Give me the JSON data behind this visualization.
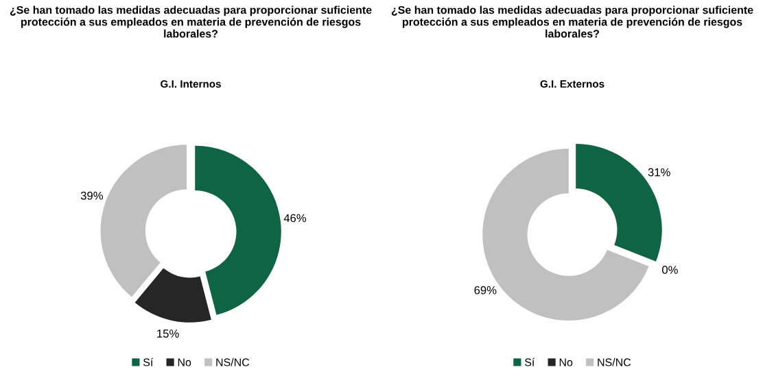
{
  "chart_data": [
    {
      "type": "donut",
      "title": "¿Se han tomado las medidas adecuadas para proporcionar suficiente protección a sus empleados en materia de prevención de riesgos laborales?",
      "subtitle": "G.I. Internos",
      "categories": [
        "Sí",
        "No",
        "NS/NC"
      ],
      "values": [
        46,
        15,
        39
      ],
      "value_labels": [
        "46%",
        "15%",
        "39%"
      ],
      "colors": [
        "#0f6443",
        "#262626",
        "#c0c0c0"
      ],
      "legend": "bottom"
    },
    {
      "type": "donut",
      "title": "¿Se han tomado las medidas adecuadas para proporcionar suficiente protección a sus empleados en materia de prevención de riesgos laborales?",
      "subtitle": "G.I. Externos",
      "categories": [
        "Sí",
        "No",
        "NS/NC"
      ],
      "values": [
        31,
        0,
        69
      ],
      "value_labels": [
        "31%",
        "0%",
        "69%"
      ],
      "colors": [
        "#0f6443",
        "#262626",
        "#c0c0c0"
      ],
      "legend": "bottom"
    }
  ]
}
